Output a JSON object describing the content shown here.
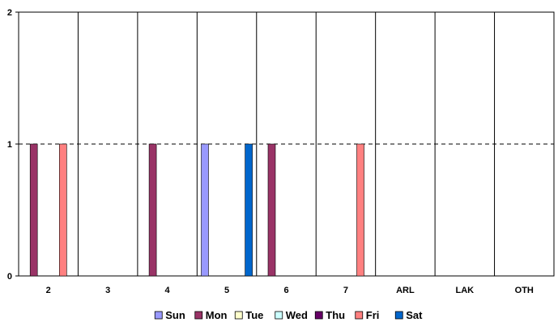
{
  "chart_data": {
    "type": "bar",
    "categories": [
      "2",
      "3",
      "4",
      "5",
      "6",
      "7",
      "ARL",
      "LAK",
      "OTH"
    ],
    "y_ticks": [
      "0",
      "1",
      "2"
    ],
    "ylim": [
      0,
      2
    ],
    "grid": "dashed line at 1",
    "legend_position": "bottom",
    "series": [
      {
        "name": "Sun",
        "color": "#9999ff",
        "values": [
          0,
          0,
          0,
          1,
          0,
          0,
          0,
          0,
          0
        ]
      },
      {
        "name": "Mon",
        "color": "#993366",
        "values": [
          1,
          0,
          1,
          0,
          1,
          0,
          0,
          0,
          0
        ]
      },
      {
        "name": "Tue",
        "color": "#ffffcc",
        "values": [
          0,
          0,
          0,
          0,
          0,
          0,
          0,
          0,
          0
        ]
      },
      {
        "name": "Wed",
        "color": "#ccffff",
        "values": [
          0,
          0,
          0,
          0,
          0,
          0,
          0,
          0,
          0
        ]
      },
      {
        "name": "Thu",
        "color": "#660066",
        "values": [
          0,
          0,
          0,
          0,
          0,
          0,
          0,
          0,
          0
        ]
      },
      {
        "name": "Fri",
        "color": "#ff8080",
        "values": [
          1,
          0,
          0,
          0,
          0,
          1,
          0,
          0,
          0
        ]
      },
      {
        "name": "Sat",
        "color": "#0066cc",
        "values": [
          0,
          0,
          0,
          1,
          0,
          0,
          0,
          0,
          0
        ]
      }
    ]
  }
}
